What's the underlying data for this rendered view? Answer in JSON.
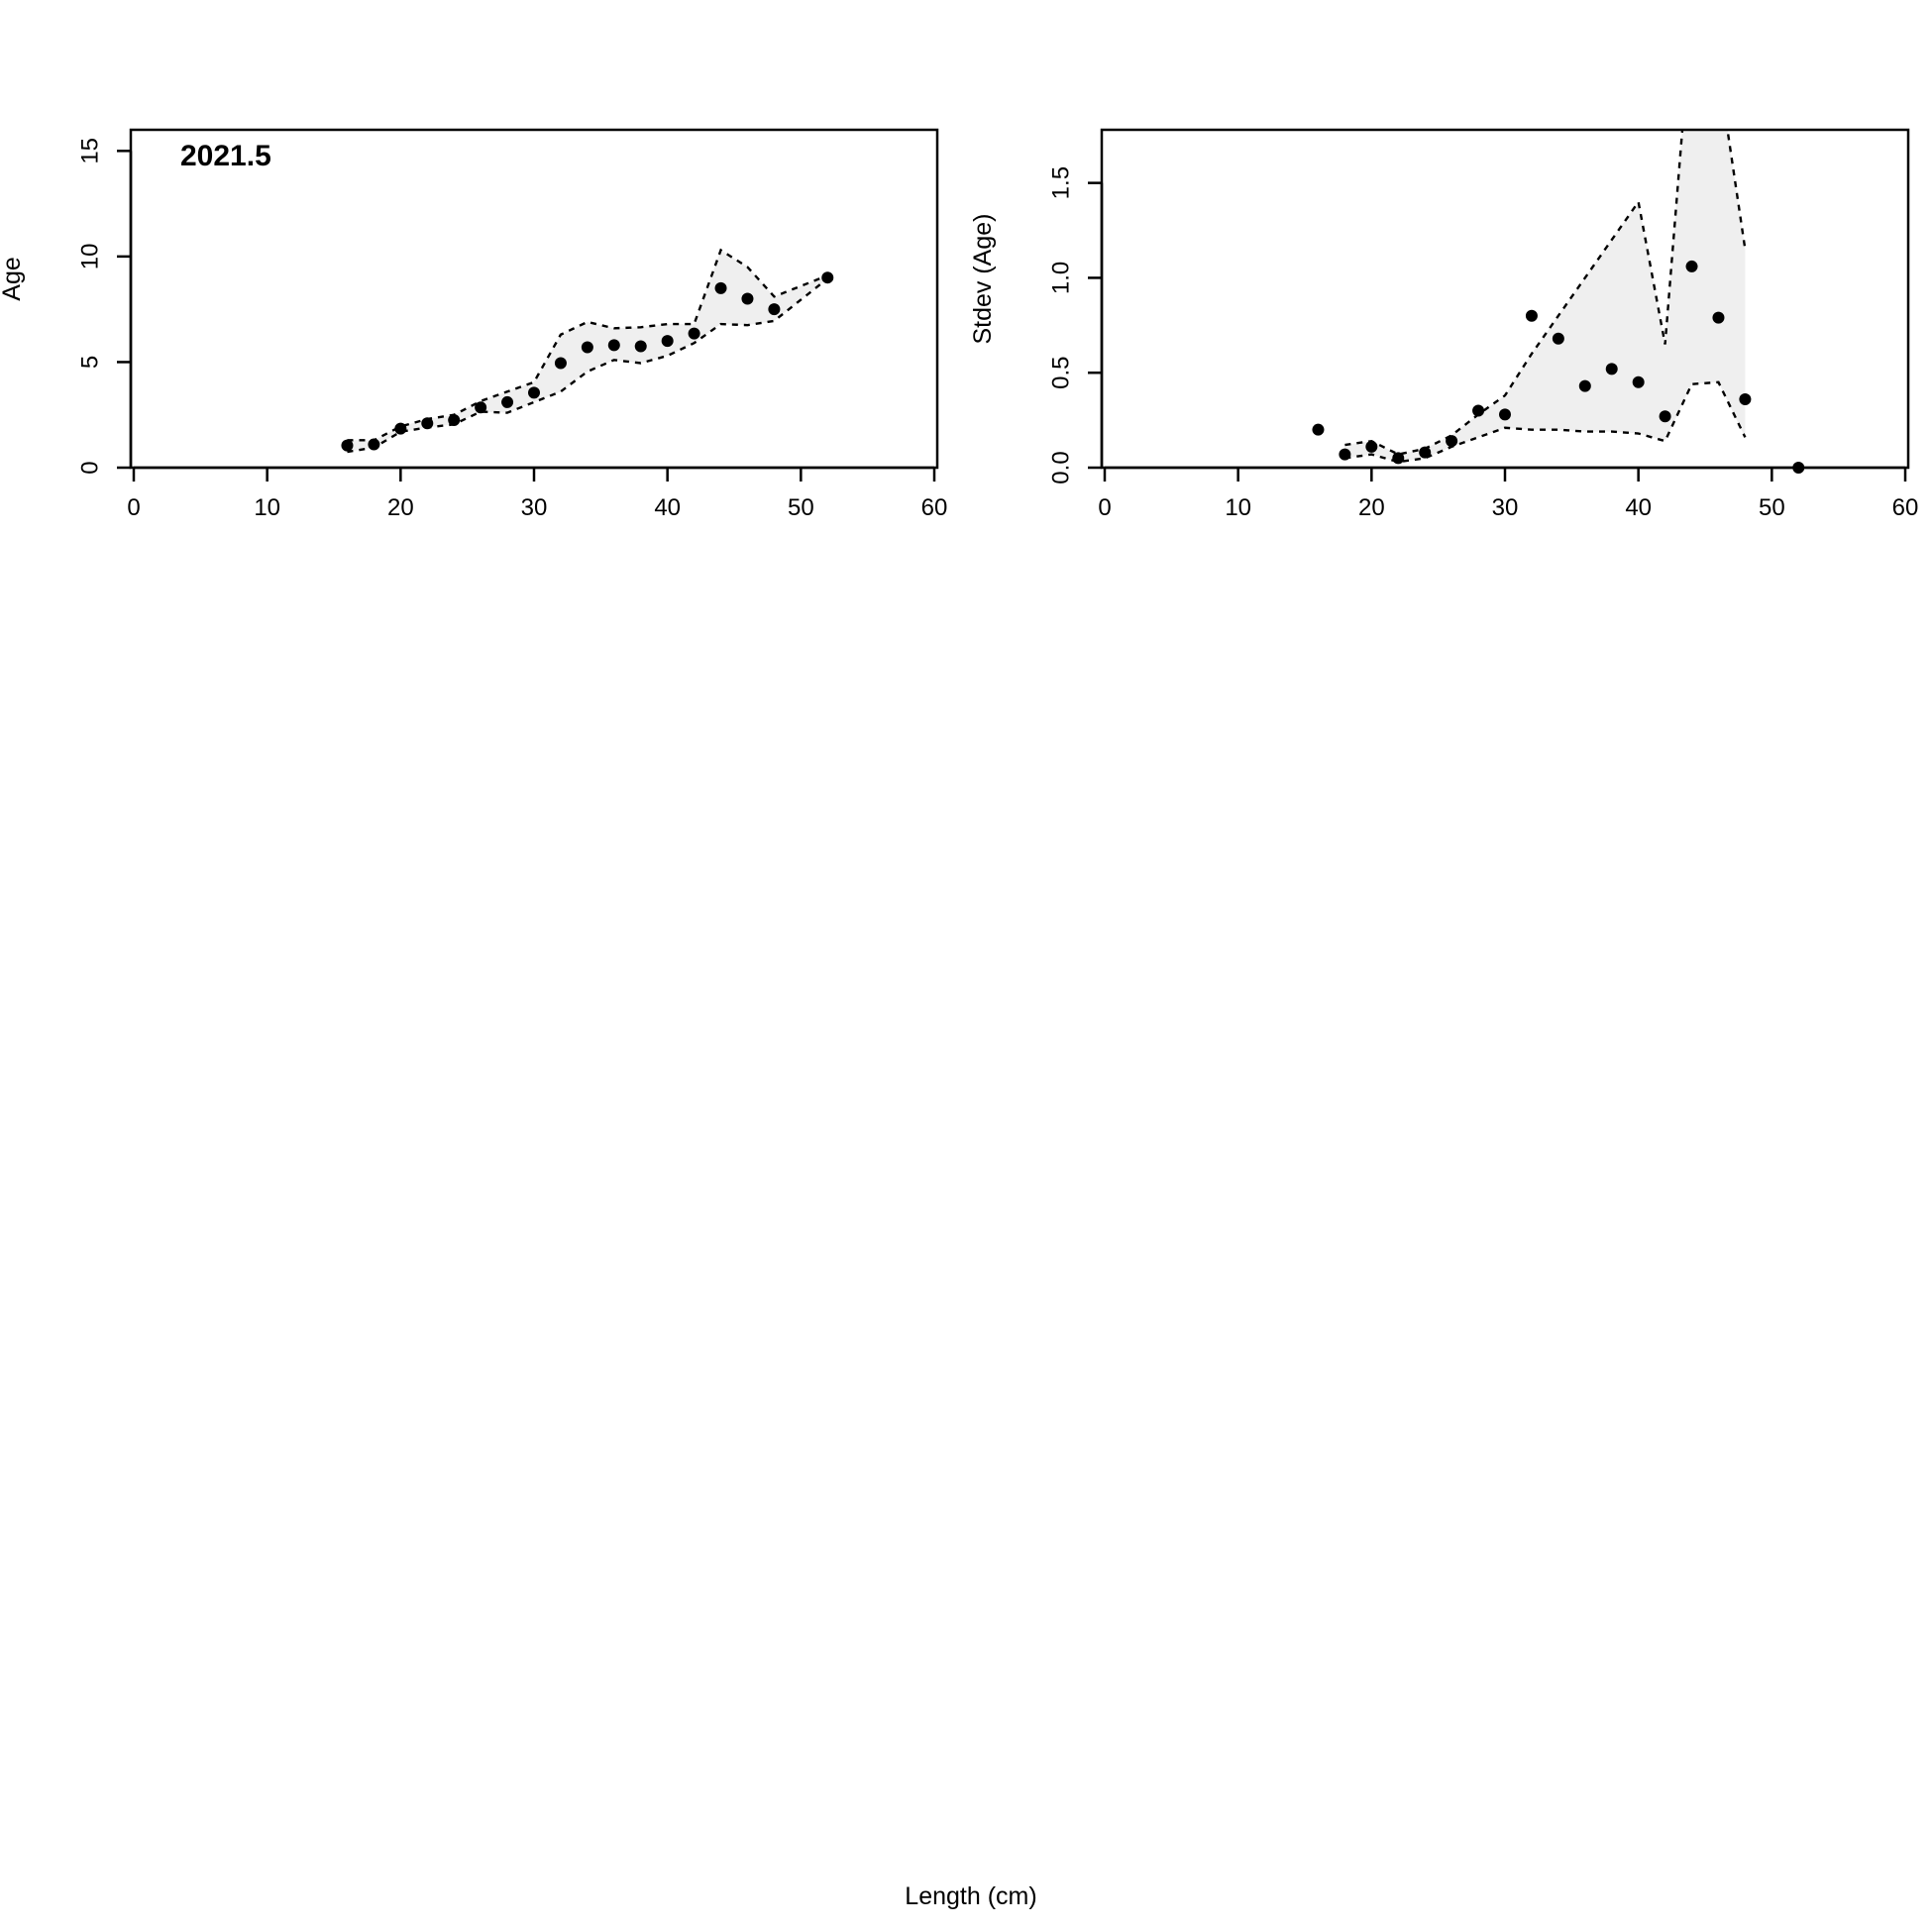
{
  "shared_xlabel": "Length (cm)",
  "chart_data": [
    {
      "type": "scatter",
      "panel_label": "2021.5",
      "xlabel": "",
      "ylabel": "Age",
      "xlim": [
        0,
        60
      ],
      "ylim": [
        0,
        16
      ],
      "xticks": [
        0,
        10,
        20,
        30,
        40,
        50,
        60
      ],
      "yticks": [
        0,
        5,
        10,
        15
      ],
      "grid": false,
      "band_color": "#efefef",
      "point_color": "#000000",
      "points": {
        "x": [
          16,
          18,
          20,
          22,
          24,
          26,
          28,
          30,
          32,
          34,
          36,
          38,
          40,
          42,
          44,
          46,
          48,
          52
        ],
        "y": [
          1.05,
          1.1,
          1.85,
          2.1,
          2.25,
          2.85,
          3.1,
          3.55,
          4.95,
          5.7,
          5.8,
          5.75,
          6.0,
          6.35,
          8.5,
          8.0,
          7.5,
          9.0
        ]
      },
      "band": {
        "x": [
          16,
          18,
          20,
          22,
          24,
          26,
          28,
          30,
          32,
          34,
          36,
          38,
          40,
          42,
          44,
          46,
          48,
          52
        ],
        "upper": [
          1.3,
          1.3,
          1.95,
          2.3,
          2.5,
          3.15,
          3.6,
          4.05,
          6.3,
          6.9,
          6.6,
          6.65,
          6.8,
          6.8,
          10.3,
          9.5,
          8.1,
          9.1
        ],
        "lower": [
          0.75,
          0.95,
          1.7,
          1.9,
          2.05,
          2.65,
          2.6,
          3.1,
          3.6,
          4.55,
          5.1,
          4.95,
          5.3,
          5.9,
          6.8,
          6.75,
          6.95,
          8.95
        ]
      }
    },
    {
      "type": "scatter",
      "panel_label": "",
      "xlabel": "",
      "ylabel": "Stdev (Age)",
      "xlim": [
        0,
        60
      ],
      "ylim": [
        0,
        1.78
      ],
      "xticks": [
        0,
        10,
        20,
        30,
        40,
        50,
        60
      ],
      "yticks": [
        "0.0",
        "0.5",
        "1.0",
        "1.5"
      ],
      "grid": false,
      "band_color": "#efefef",
      "point_color": "#000000",
      "points": {
        "x": [
          16,
          18,
          20,
          22,
          24,
          26,
          28,
          30,
          32,
          34,
          36,
          38,
          40,
          42,
          44,
          46,
          48,
          52
        ],
        "y": [
          0.2,
          0.07,
          0.11,
          0.05,
          0.08,
          0.14,
          0.3,
          0.28,
          0.8,
          0.68,
          0.43,
          0.52,
          0.45,
          0.27,
          1.06,
          0.79,
          0.36,
          0.0
        ]
      },
      "band": {
        "x": [
          18,
          20,
          22,
          24,
          26,
          28,
          30,
          32,
          34,
          36,
          38,
          40,
          42,
          44,
          46,
          48
        ],
        "upper": [
          0.12,
          0.14,
          0.07,
          0.1,
          0.17,
          0.28,
          0.38,
          0.6,
          0.8,
          1.0,
          1.2,
          1.4,
          0.65,
          2.4,
          2.1,
          1.15
        ],
        "lower": [
          0.05,
          0.07,
          0.03,
          0.05,
          0.11,
          0.16,
          0.21,
          0.2,
          0.2,
          0.19,
          0.19,
          0.18,
          0.14,
          0.44,
          0.45,
          0.16
        ]
      }
    }
  ]
}
